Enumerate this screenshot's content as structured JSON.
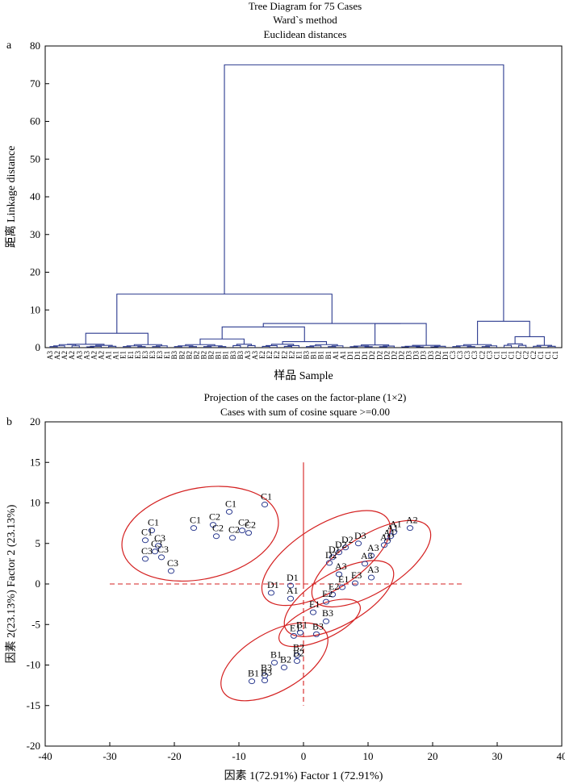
{
  "panels": {
    "a": {
      "label": "a",
      "title_lines": [
        "Tree Diagram for 75 Cases",
        "Ward`s method",
        "Euclidean distances"
      ],
      "ylabel": "距离 Linkage distance",
      "xlabel": "样品 Sample",
      "ylim": [
        0,
        80
      ],
      "yticks": [
        0,
        10,
        20,
        30,
        40,
        50,
        60,
        70,
        80
      ],
      "leaves": [
        "A3",
        "A2",
        "A2",
        "A2",
        "A3",
        "A3",
        "A2",
        "A2",
        "A1",
        "A1",
        "E1",
        "E1",
        "E3",
        "E3",
        "E3",
        "E3",
        "E1",
        "B3",
        "B2",
        "B2",
        "B2",
        "B2",
        "B2",
        "B1",
        "B1",
        "B3",
        "B3",
        "A3",
        "A3",
        "E2",
        "E2",
        "E2",
        "E2",
        "E2",
        "E1",
        "B3",
        "B1",
        "B1",
        "B1",
        "A1",
        "A1",
        "D1",
        "D1",
        "D1",
        "D2",
        "D2",
        "D2",
        "D2",
        "D2",
        "D3",
        "D3",
        "D3",
        "D3",
        "D2",
        "D1",
        "C3",
        "C3",
        "C3",
        "C3",
        "C2",
        "C3",
        "C1",
        "C1",
        "C1",
        "C2",
        "C2",
        "C2",
        "C1",
        "C1",
        "C1"
      ],
      "linkage_heights": [
        75,
        14.2,
        3.8,
        7,
        6.4,
        5.5,
        2.3,
        2.9
      ]
    },
    "b": {
      "label": "b",
      "title_lines": [
        "Projection of the cases on the factor-plane (1×2)",
        "Cases with sum of cosine square >=0.00"
      ],
      "xlabel": "因素 1(72.91%)  Factor 1 (72.91%)",
      "ylabel": "因素 2(23.13%)   Factor 2 (23.13%)",
      "xlim": [
        -40,
        40
      ],
      "ylim": [
        -20,
        20
      ],
      "xticks": [
        -40,
        -30,
        -20,
        -10,
        0,
        10,
        20,
        30,
        40
      ],
      "yticks": [
        -20,
        -15,
        -10,
        -5,
        0,
        5,
        10,
        15,
        20
      ]
    }
  },
  "chart_data": [
    {
      "type": "dendrogram",
      "title": "Tree Diagram for 75 Cases",
      "subtitle": "Ward`s method; Euclidean distances",
      "xlabel": "样品 Sample",
      "ylabel": "距离 Linkage distance",
      "ylim": [
        0,
        80
      ],
      "top_merge_height": 75,
      "cluster_heights": {
        "A+E group": 3.8,
        "B+A+E+D group": 14.2,
        "C group": 7.0,
        "root": 75
      }
    },
    {
      "type": "scatter",
      "title": "Projection of the cases on the factor-plane (1×2)",
      "xlabel": "Factor 1 (72.91%)",
      "ylabel": "Factor 2 (23.13%)",
      "xlim": [
        -40,
        40
      ],
      "ylim": [
        -20,
        20
      ],
      "points": [
        {
          "label": "C1",
          "x": -6.0,
          "y": 9.8
        },
        {
          "label": "C1",
          "x": -11.5,
          "y": 8.9
        },
        {
          "label": "C1",
          "x": -17.0,
          "y": 6.9
        },
        {
          "label": "C2",
          "x": -14.0,
          "y": 7.3
        },
        {
          "label": "C2",
          "x": -13.5,
          "y": 5.9
        },
        {
          "label": "C2",
          "x": -9.5,
          "y": 6.6
        },
        {
          "label": "C2",
          "x": -8.5,
          "y": 6.3
        },
        {
          "label": "C2",
          "x": -11.0,
          "y": 5.7
        },
        {
          "label": "C1",
          "x": -23.5,
          "y": 6.6
        },
        {
          "label": "C1",
          "x": -24.5,
          "y": 5.4
        },
        {
          "label": "C3",
          "x": -23.0,
          "y": 4.0
        },
        {
          "label": "C3",
          "x": -24.5,
          "y": 3.1
        },
        {
          "label": "C3",
          "x": -22.0,
          "y": 3.3
        },
        {
          "label": "C3",
          "x": -20.5,
          "y": 1.6
        },
        {
          "label": "C3",
          "x": -22.5,
          "y": 4.7
        },
        {
          "label": "A2",
          "x": 16.5,
          "y": 6.9
        },
        {
          "label": "A1",
          "x": 14.0,
          "y": 6.4
        },
        {
          "label": "A1",
          "x": 13.5,
          "y": 5.9
        },
        {
          "label": "A1",
          "x": 13.0,
          "y": 5.3
        },
        {
          "label": "A1",
          "x": 12.5,
          "y": 4.8
        },
        {
          "label": "A3",
          "x": 10.5,
          "y": 3.5
        },
        {
          "label": "A3",
          "x": 9.5,
          "y": 2.5
        },
        {
          "label": "A3",
          "x": 10.5,
          "y": 0.8
        },
        {
          "label": "D3",
          "x": 8.5,
          "y": 5.0
        },
        {
          "label": "D2",
          "x": 6.5,
          "y": 4.5
        },
        {
          "label": "D2",
          "x": 5.5,
          "y": 3.9
        },
        {
          "label": "D1",
          "x": 4.5,
          "y": 3.3
        },
        {
          "label": "D2",
          "x": 4.0,
          "y": 2.6
        },
        {
          "label": "D1",
          "x": -5.0,
          "y": -1.1
        },
        {
          "label": "D1",
          "x": -2.0,
          "y": -0.2
        },
        {
          "label": "A1",
          "x": -2.0,
          "y": -1.8
        },
        {
          "label": "A3",
          "x": 5.5,
          "y": 1.2
        },
        {
          "label": "E1",
          "x": 6.0,
          "y": -0.4
        },
        {
          "label": "E3",
          "x": 8.0,
          "y": 0.1
        },
        {
          "label": "E2",
          "x": 4.5,
          "y": -1.3
        },
        {
          "label": "E2",
          "x": 3.5,
          "y": -2.2
        },
        {
          "label": "E1",
          "x": 1.5,
          "y": -3.5
        },
        {
          "label": "B3",
          "x": 3.5,
          "y": -4.6
        },
        {
          "label": "B3",
          "x": 2.0,
          "y": -6.2
        },
        {
          "label": "E1",
          "x": -1.5,
          "y": -6.4
        },
        {
          "label": "B1",
          "x": -0.5,
          "y": -6.0
        },
        {
          "label": "B2",
          "x": -1.0,
          "y": -8.8
        },
        {
          "label": "B2",
          "x": -1.0,
          "y": -9.5
        },
        {
          "label": "B1",
          "x": -4.5,
          "y": -9.7
        },
        {
          "label": "B2",
          "x": -3.0,
          "y": -10.3
        },
        {
          "label": "B3",
          "x": -6.0,
          "y": -11.3
        },
        {
          "label": "B3",
          "x": -6.0,
          "y": -11.9
        },
        {
          "label": "B1",
          "x": -8.0,
          "y": -12.0
        }
      ],
      "reference_lines": {
        "horizontal": 0,
        "vertical": 0
      }
    }
  ]
}
